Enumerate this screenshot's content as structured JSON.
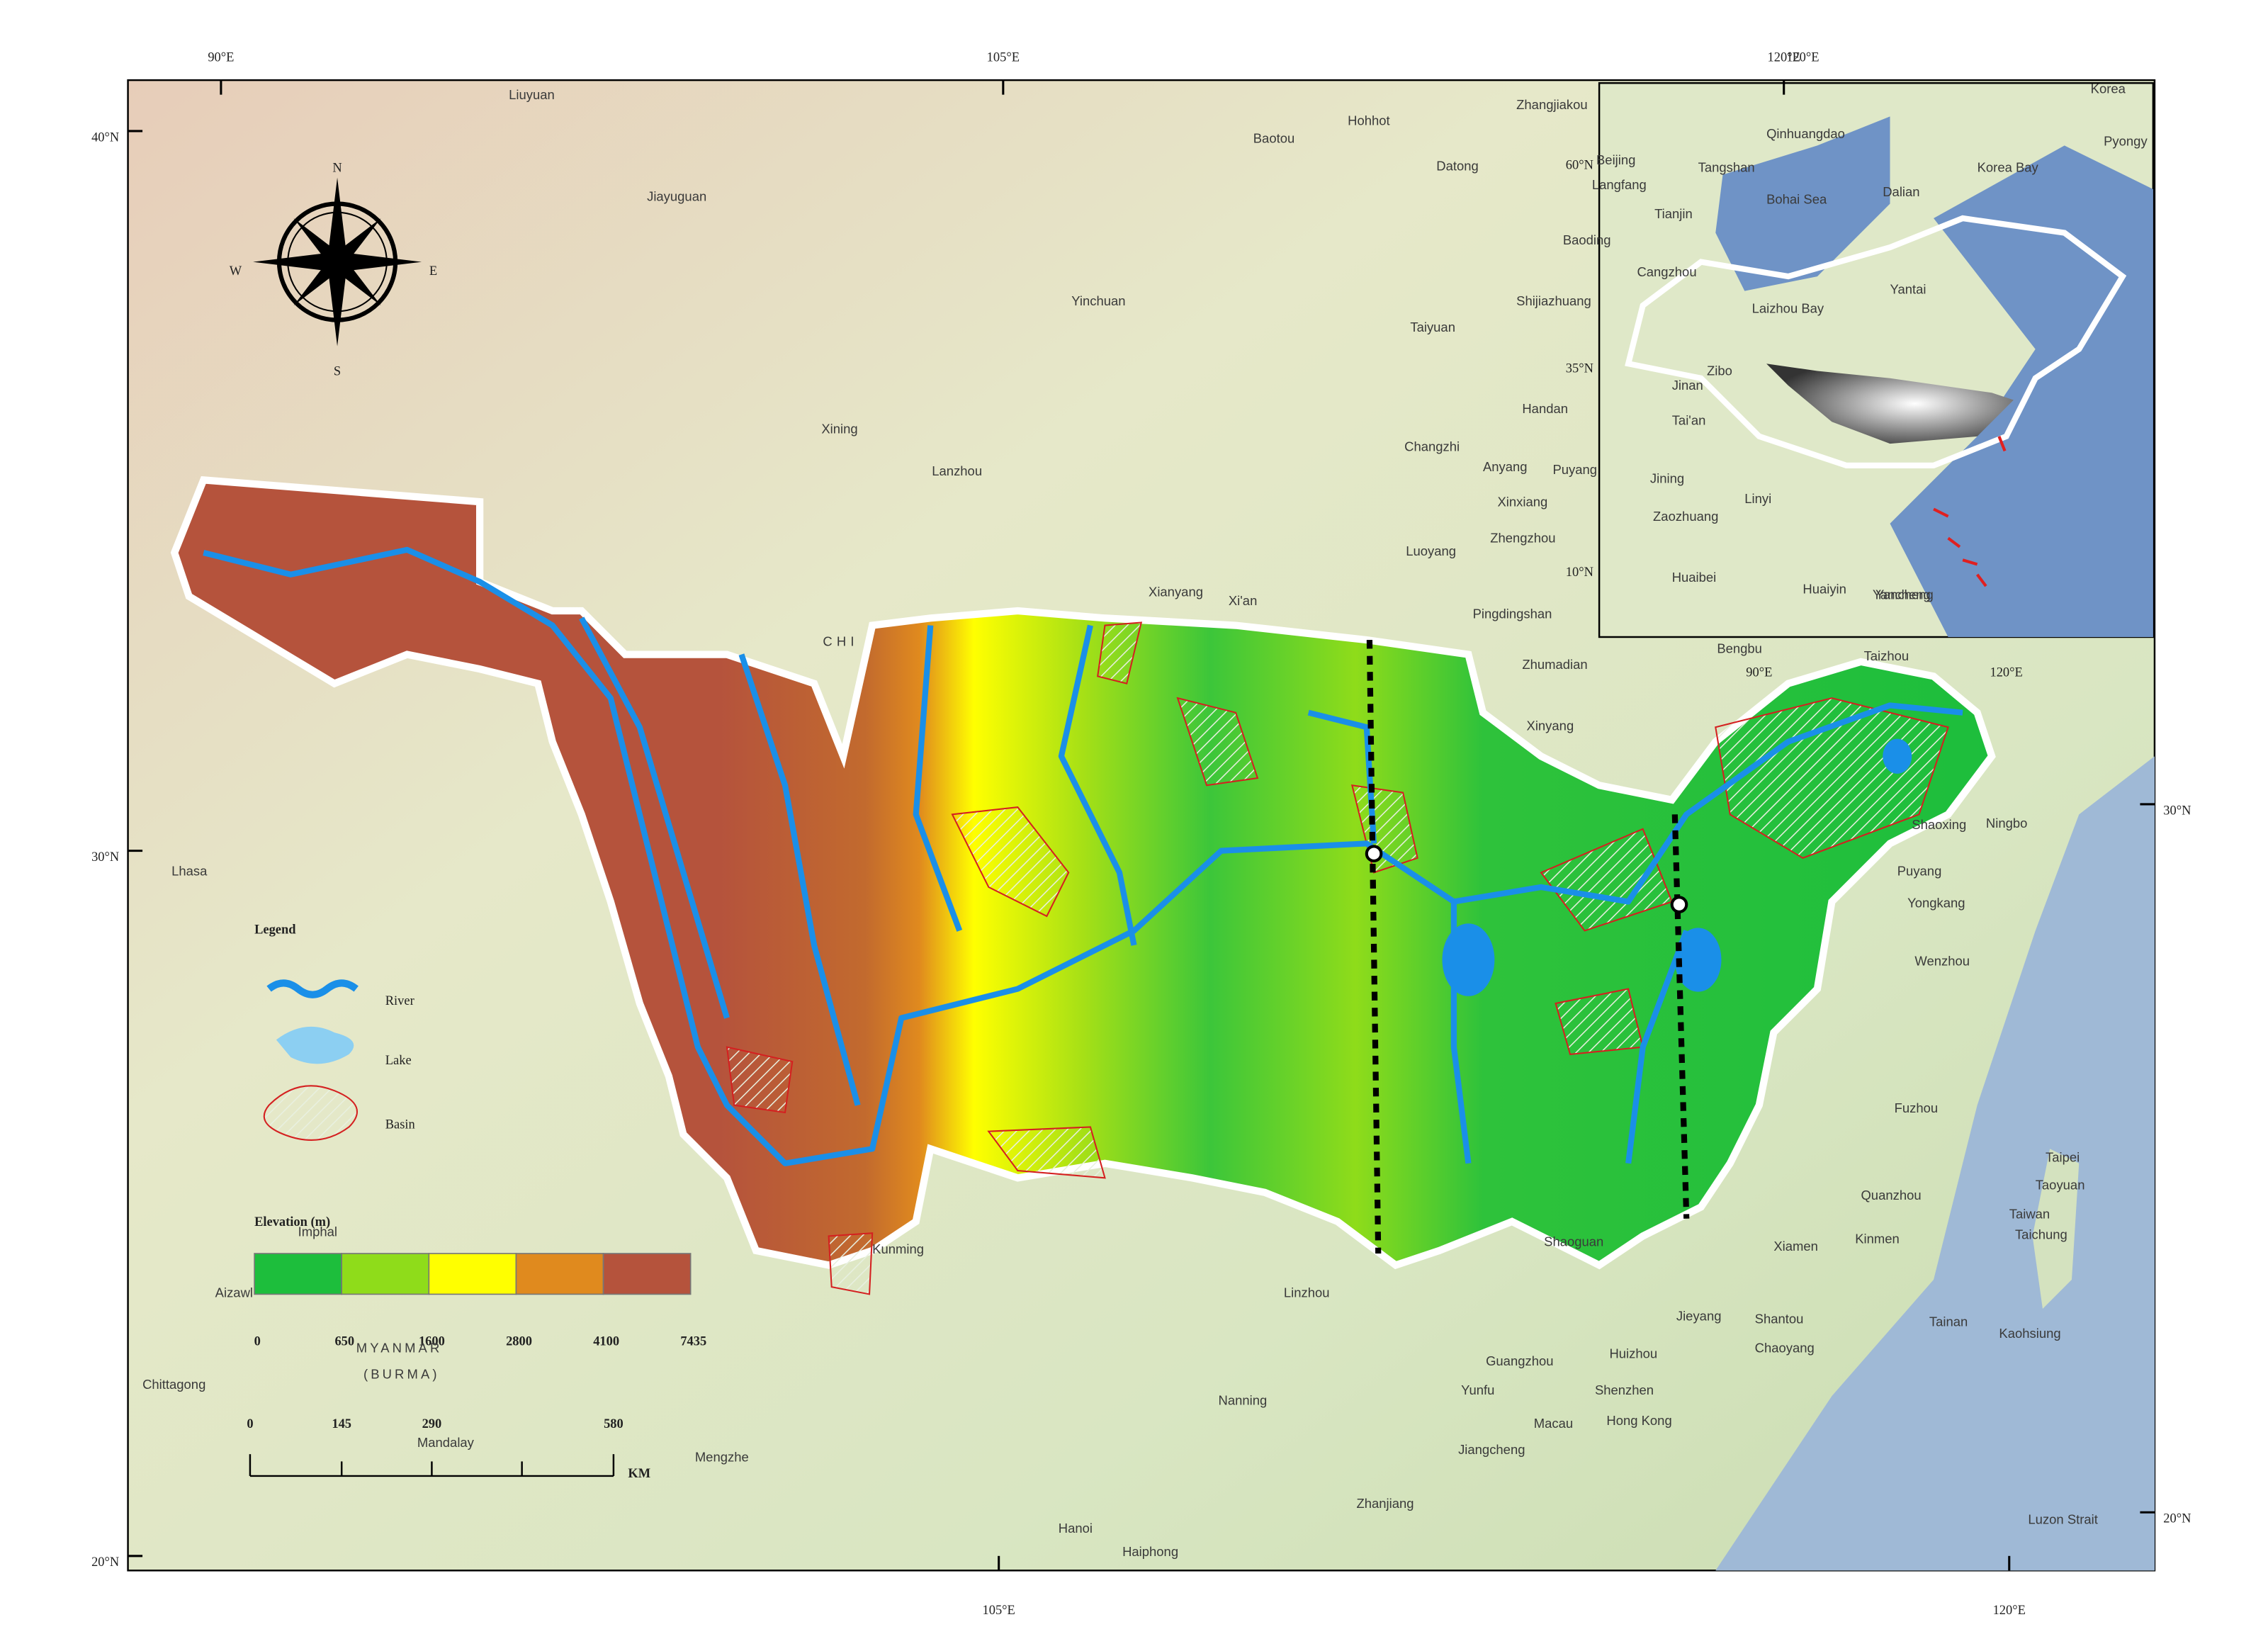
{
  "frame": {
    "top_labels": [
      "90°E",
      "105°E",
      "120°E"
    ],
    "bottom_labels": [
      "105°E",
      "120°E"
    ],
    "left_labels": [
      "40°N",
      "30°N",
      "20°N"
    ],
    "right_labels": [
      "30°N",
      "20°N"
    ]
  },
  "compass": {
    "north": "N",
    "south": "S",
    "east": "E",
    "west": "W"
  },
  "legend": {
    "title": "Legend",
    "items": [
      "River",
      "Lake",
      "Basin"
    ]
  },
  "elevation": {
    "title": "Elevation (m)",
    "breaks": [
      0,
      650,
      1600,
      2800,
      4100,
      7435
    ]
  },
  "scale_bar": {
    "ticks": [
      0,
      145,
      290,
      580
    ],
    "unit": "KM"
  },
  "places": [
    "Liuyuan",
    "Baotou",
    "Hohhot",
    "Zhangjiakou",
    "Datong",
    "Jiayuguan",
    "Yinchuan",
    "Baoding",
    "Shijiazhuang",
    "Taiyuan",
    "Xining",
    "Lanzhou",
    "Handan",
    "Changzhi",
    "Anyang",
    "Puyang",
    "Xinxiang",
    "Zhengzhou",
    "Luoyang",
    "Xianyang",
    "Xi'an",
    "Pingdingshan",
    "Zhumadian",
    "Xinyang",
    "CHI",
    "Lhasa",
    "Kunming",
    "Shaoguan",
    "Linzhou",
    "Nanning",
    "Guangzhou",
    "Huizhou",
    "Jieyang",
    "Shantou",
    "Chaoyang",
    "Yunfu",
    "Shenzhen",
    "Macau",
    "Hong Kong",
    "Jiangcheng",
    "Zhanjiang",
    "Hanoi",
    "Haiphong",
    "Mengzhe",
    "Mandalay",
    "MYANMAR",
    "(BURMA)",
    "Chittagong",
    "Aizawl",
    "Imphal",
    "Xiamen",
    "Kinmen",
    "Quanzhou",
    "Fuzhou",
    "Wenzhou",
    "Yongkang",
    "Puyang",
    "Shaoxing",
    "Ningbo",
    "Taipei",
    "Taoyuan",
    "Taiwan",
    "Taichung",
    "Tainan",
    "Kaohsiung",
    "Luzon Strait",
    "Taizhou",
    "Bengbu",
    "Yancheng"
  ],
  "inset": {
    "lat_labels": [
      "60°N",
      "35°N",
      "10°N"
    ],
    "lon_labels": [
      "90°E",
      "120°E"
    ],
    "top_labels": [
      "120°E"
    ],
    "places": [
      "Beijing",
      "Langfang",
      "Tangshan",
      "Qinhuangdao",
      "Tianjin",
      "Bohai Sea",
      "Dalian",
      "Korea Bay",
      "Pyongy",
      "Cangzhou",
      "Yantai",
      "Laizhou Bay",
      "Zibo",
      "Jinan",
      "Tai'an",
      "Jining",
      "Zaozhuang",
      "Linyi",
      "Huaibei",
      "Huaiyin",
      "Yancheng",
      "Korea"
    ]
  }
}
